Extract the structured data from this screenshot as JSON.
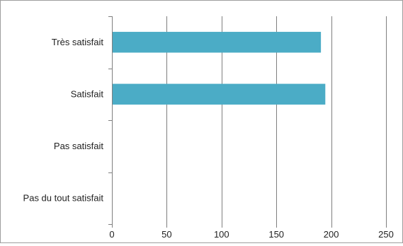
{
  "chart_data": {
    "type": "bar",
    "orientation": "horizontal",
    "title": "",
    "xlabel": "",
    "ylabel": "",
    "categories": [
      "Très satisfait",
      "Satisfait",
      "Pas satisfait",
      "Pas du tout satisfait"
    ],
    "values": [
      190,
      194,
      0,
      0
    ],
    "xlim": [
      0,
      250
    ],
    "xticks": [
      0,
      50,
      100,
      150,
      200,
      250
    ],
    "grid": "vertical",
    "legend": "none",
    "colors": {
      "bar": "#4bacc6",
      "grid": "#7f7f7f",
      "axis": "#7f7f7f",
      "frame": "#9e9e9e"
    }
  }
}
